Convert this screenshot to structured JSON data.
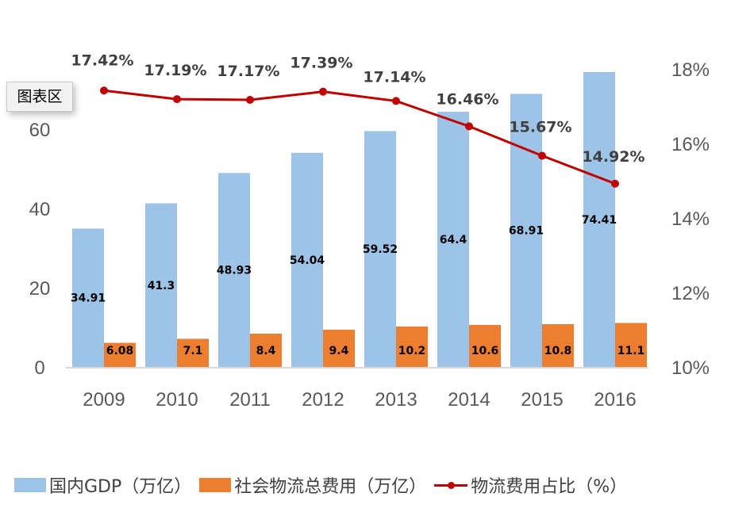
{
  "tooltip": {
    "label": "图表区"
  },
  "colors": {
    "gdp": "#9dc3e6",
    "logistics": "#ed7d31",
    "ratio": "#c00000",
    "axis": "#d9d9d9"
  },
  "chart_data": {
    "type": "bar",
    "title": "",
    "categories": [
      "2009",
      "2010",
      "2011",
      "2012",
      "2013",
      "2014",
      "2015",
      "2016"
    ],
    "series": [
      {
        "name": "国内GDP（万亿）",
        "type": "bar",
        "axis": "left",
        "values": [
          34.91,
          41.3,
          48.93,
          54.04,
          59.52,
          64.4,
          68.91,
          74.41
        ],
        "labels": [
          "34.91",
          "41.3",
          "48.93",
          "54.04",
          "59.52",
          "64.4",
          "68.91",
          "74.41"
        ]
      },
      {
        "name": "社会物流总费用（万亿）",
        "type": "bar",
        "axis": "left",
        "values": [
          6.08,
          7.1,
          8.4,
          9.4,
          10.2,
          10.6,
          10.8,
          11.1
        ],
        "labels": [
          "6.08",
          "7.1",
          "8.4",
          "9.4",
          "10.2",
          "10.6",
          "10.8",
          "11.1"
        ]
      },
      {
        "name": "物流费用占比（%）",
        "type": "line",
        "axis": "right",
        "values": [
          17.42,
          17.19,
          17.17,
          17.39,
          17.14,
          16.46,
          15.67,
          14.92
        ],
        "labels": [
          "17.42%",
          "17.19%",
          "17.17%",
          "17.39%",
          "17.14%",
          "16.46%",
          "15.67%",
          "14.92%"
        ]
      }
    ],
    "left_axis": {
      "ylim": [
        0,
        75
      ],
      "ticks": [
        0,
        20,
        40,
        60
      ],
      "tick_labels": [
        "0",
        "20",
        "40",
        "60"
      ]
    },
    "right_axis": {
      "ylim": [
        10,
        18
      ],
      "ticks": [
        10,
        12,
        14,
        16,
        18
      ],
      "tick_labels": [
        "10%",
        "12%",
        "14%",
        "16%",
        "18%"
      ]
    },
    "xlabel": "",
    "ylabel": "",
    "grid": false,
    "legend": {
      "position": "bottom",
      "entries": [
        "国内GDP（万亿）",
        "社会物流总费用（万亿）",
        "物流费用占比（%）"
      ]
    }
  }
}
